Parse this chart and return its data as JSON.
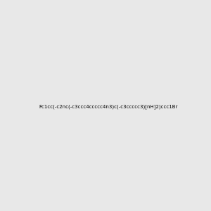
{
  "smiles": "Fc1cc(-c2nc(-c3ccc4ccccc4n3)c(-c3ccccc3)[nH]2)ccc1Br",
  "background_color": "#e8e8e8",
  "bond_color": "#000000",
  "N_color": "#0000FF",
  "Br_color": "#B8860B",
  "F_color": "#00CED1",
  "H_color": "#00CED1",
  "lw": 1.5
}
